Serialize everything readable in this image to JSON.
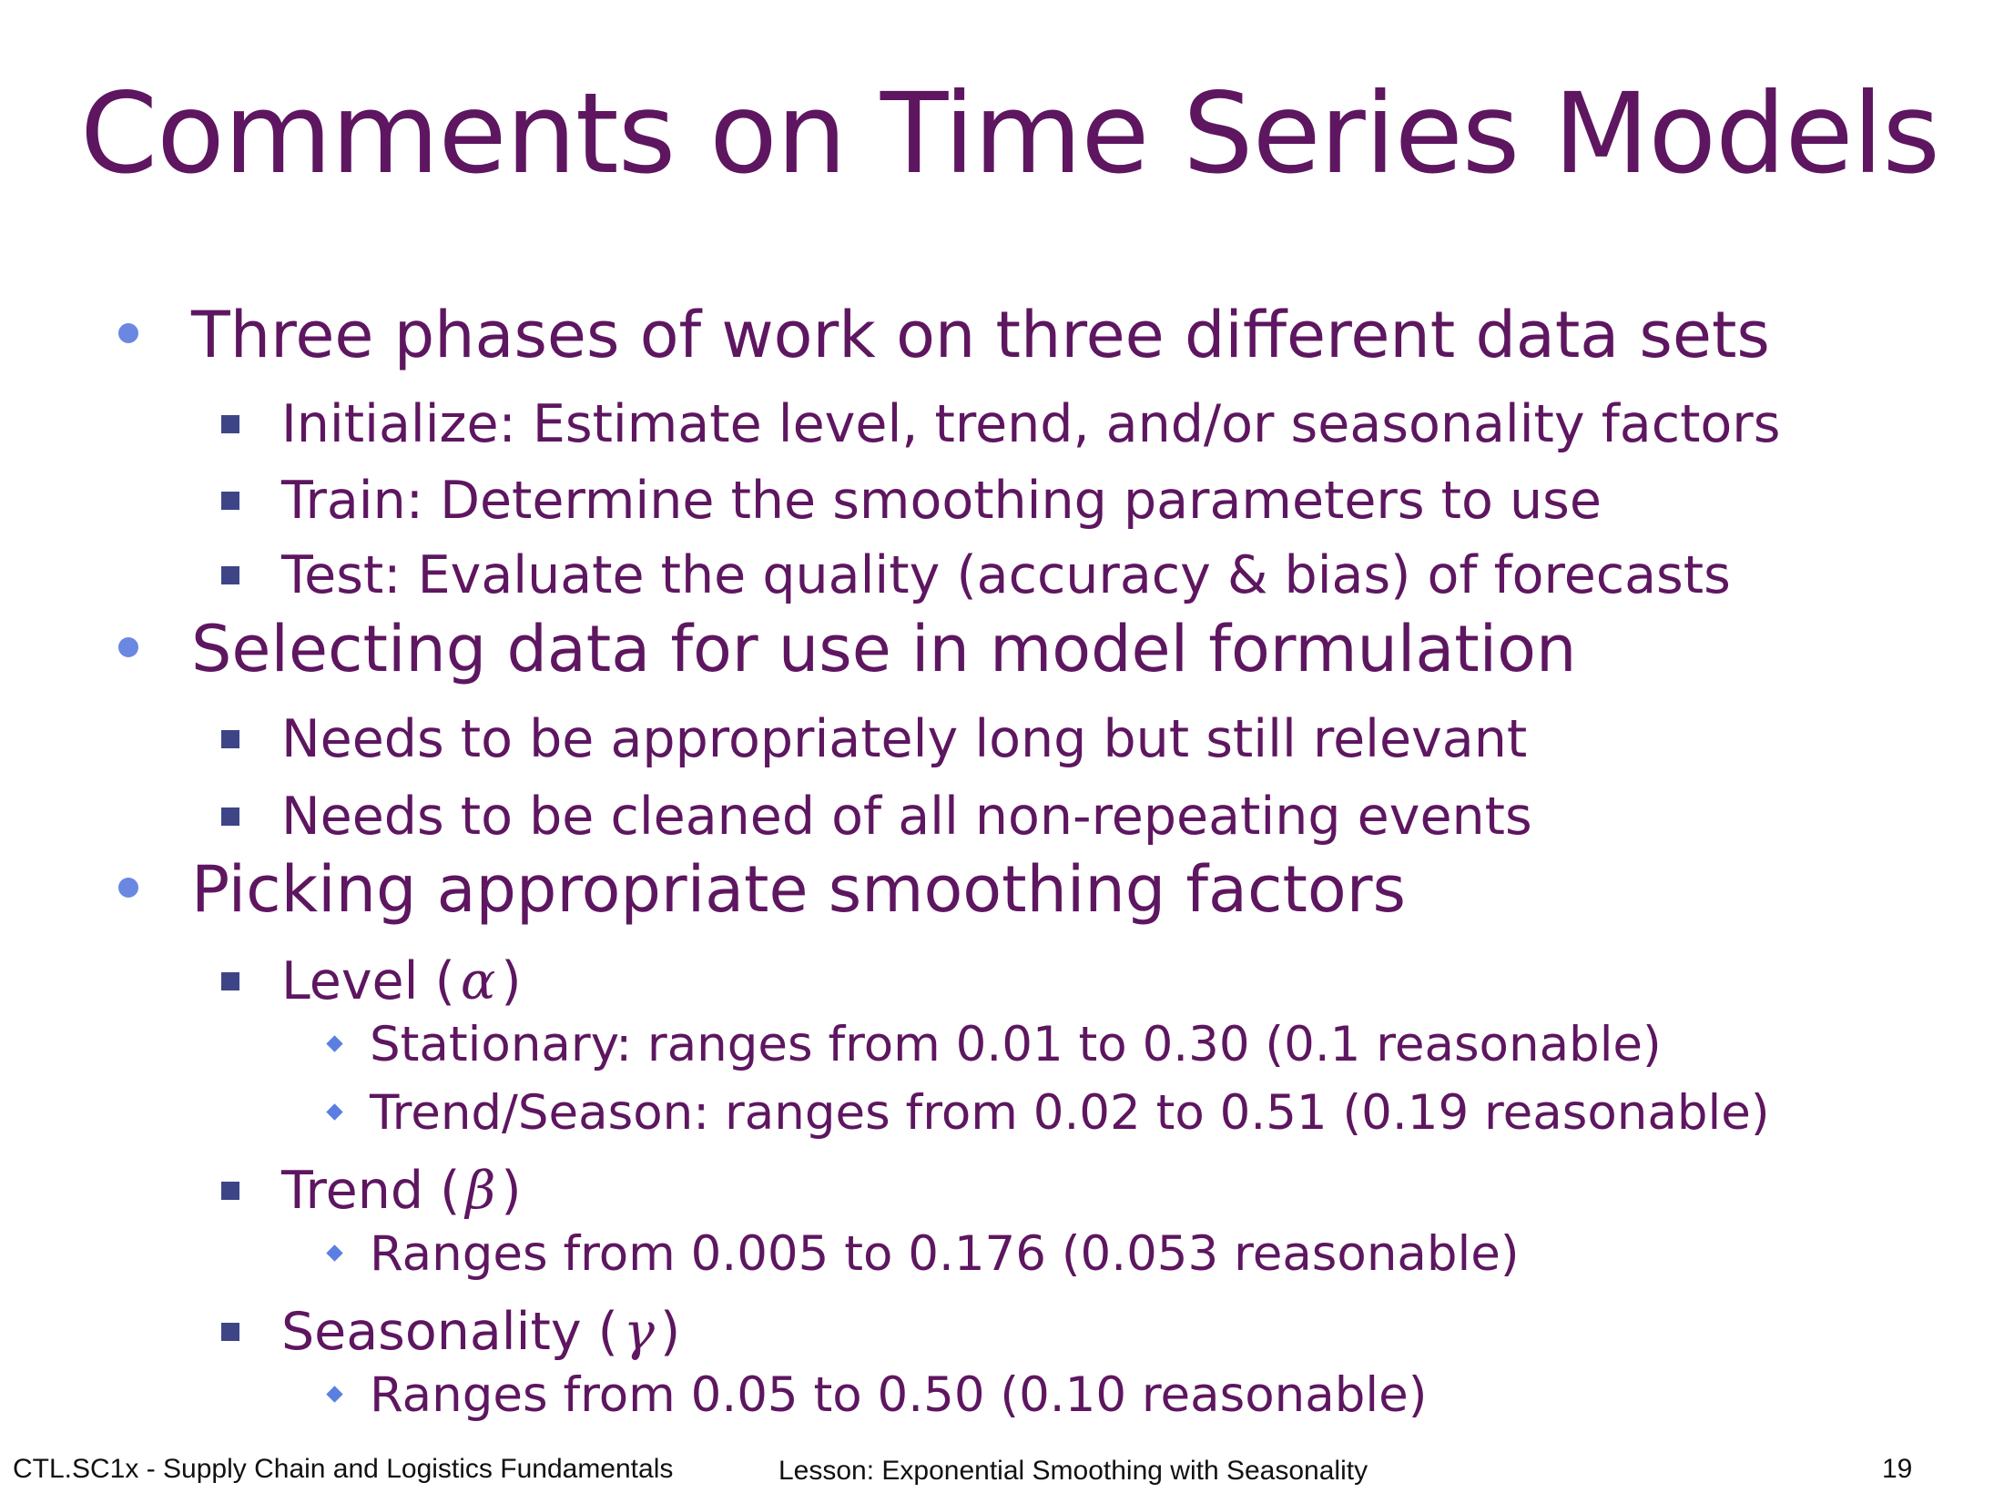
{
  "slide": {
    "title": "Comments on Time Series Models",
    "phases": {
      "heading": "Three phases of work on three different data sets",
      "items": [
        "Initialize: Estimate level, trend, and/or seasonality factors",
        "Train:  Determine the smoothing parameters to use",
        "Test: Evaluate the quality (accuracy & bias) of forecasts"
      ]
    },
    "selecting": {
      "heading": "Selecting data for use in model formulation",
      "items": [
        "Needs to be appropriately long but still relevant",
        "Needs to be cleaned of all non-repeating events"
      ]
    },
    "picking": {
      "heading": "Picking appropriate smoothing factors",
      "level": {
        "label": "Level (",
        "symbol": "α",
        "close": ")",
        "items": [
          "Stationary: ranges from 0.01 to 0.30 (0.1 reasonable)",
          "Trend/Season: ranges from 0.02 to 0.51 (0.19 reasonable)"
        ]
      },
      "trend": {
        "label": "Trend (",
        "symbol": "β",
        "close": ")",
        "items": [
          "Ranges from 0.005 to 0.176 (0.053 reasonable)"
        ]
      },
      "seasonality": {
        "label": "Seasonality (",
        "symbol": "γ",
        "close": ")",
        "items": [
          "Ranges from 0.05 to 0.50 (0.10 reasonable)"
        ]
      }
    }
  },
  "footer": {
    "course": "CTL.SC1x - Supply Chain and Logistics Fundamentals",
    "lesson": "Lesson:  Exponential Smoothing with Seasonality",
    "page_number": "19"
  },
  "colors": {
    "text": "#5e1660",
    "bullet_dot": "#6a88e2",
    "bullet_square": "#3d4587",
    "bullet_diamond": "#5b7fe0"
  }
}
